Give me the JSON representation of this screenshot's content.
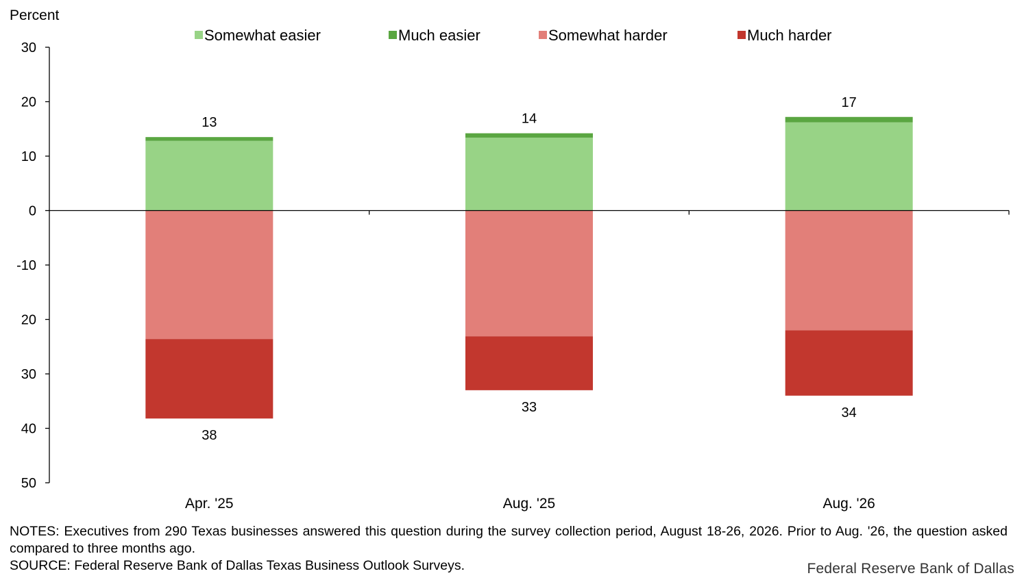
{
  "chart_data": {
    "type": "bar",
    "stacked": true,
    "ylabel": "Percent",
    "ylim": [
      -50,
      30
    ],
    "yticks": [
      30,
      20,
      10,
      0,
      -10,
      -20,
      -30,
      -40,
      -50
    ],
    "ytick_labels": [
      "30",
      "20",
      "10",
      "0",
      "-10",
      "20",
      "30",
      "40",
      "50"
    ],
    "categories": [
      "Apr. '25",
      "Aug. '25",
      "Aug. '26"
    ],
    "series": [
      {
        "name": "Somewhat easier",
        "color": "#98d386",
        "values": [
          12.8,
          13.4,
          16.2
        ]
      },
      {
        "name": "Much easier",
        "color": "#5aa641",
        "values": [
          0.7,
          0.8,
          1.0
        ]
      },
      {
        "name": "Somewhat harder",
        "color": "#e27f79",
        "values": [
          -23.6,
          -23.1,
          -22.0
        ]
      },
      {
        "name": "Much harder",
        "color": "#c2372e",
        "values": [
          -14.6,
          -9.9,
          -12.0
        ]
      }
    ],
    "positive_totals": [
      "13",
      "14",
      "17"
    ],
    "negative_totals": [
      "38",
      "33",
      "34"
    ],
    "legend_position": "top",
    "grid": false
  },
  "notes": "NOTES: Executives from 290 Texas businesses answered this question during the survey collection period, August 18-26, 2026. Prior to Aug. '26, the question asked compared to three months ago.",
  "source": "SOURCE: Federal Reserve Bank of Dallas Texas Business Outlook Surveys.",
  "credit": "Federal Reserve Bank of Dallas"
}
